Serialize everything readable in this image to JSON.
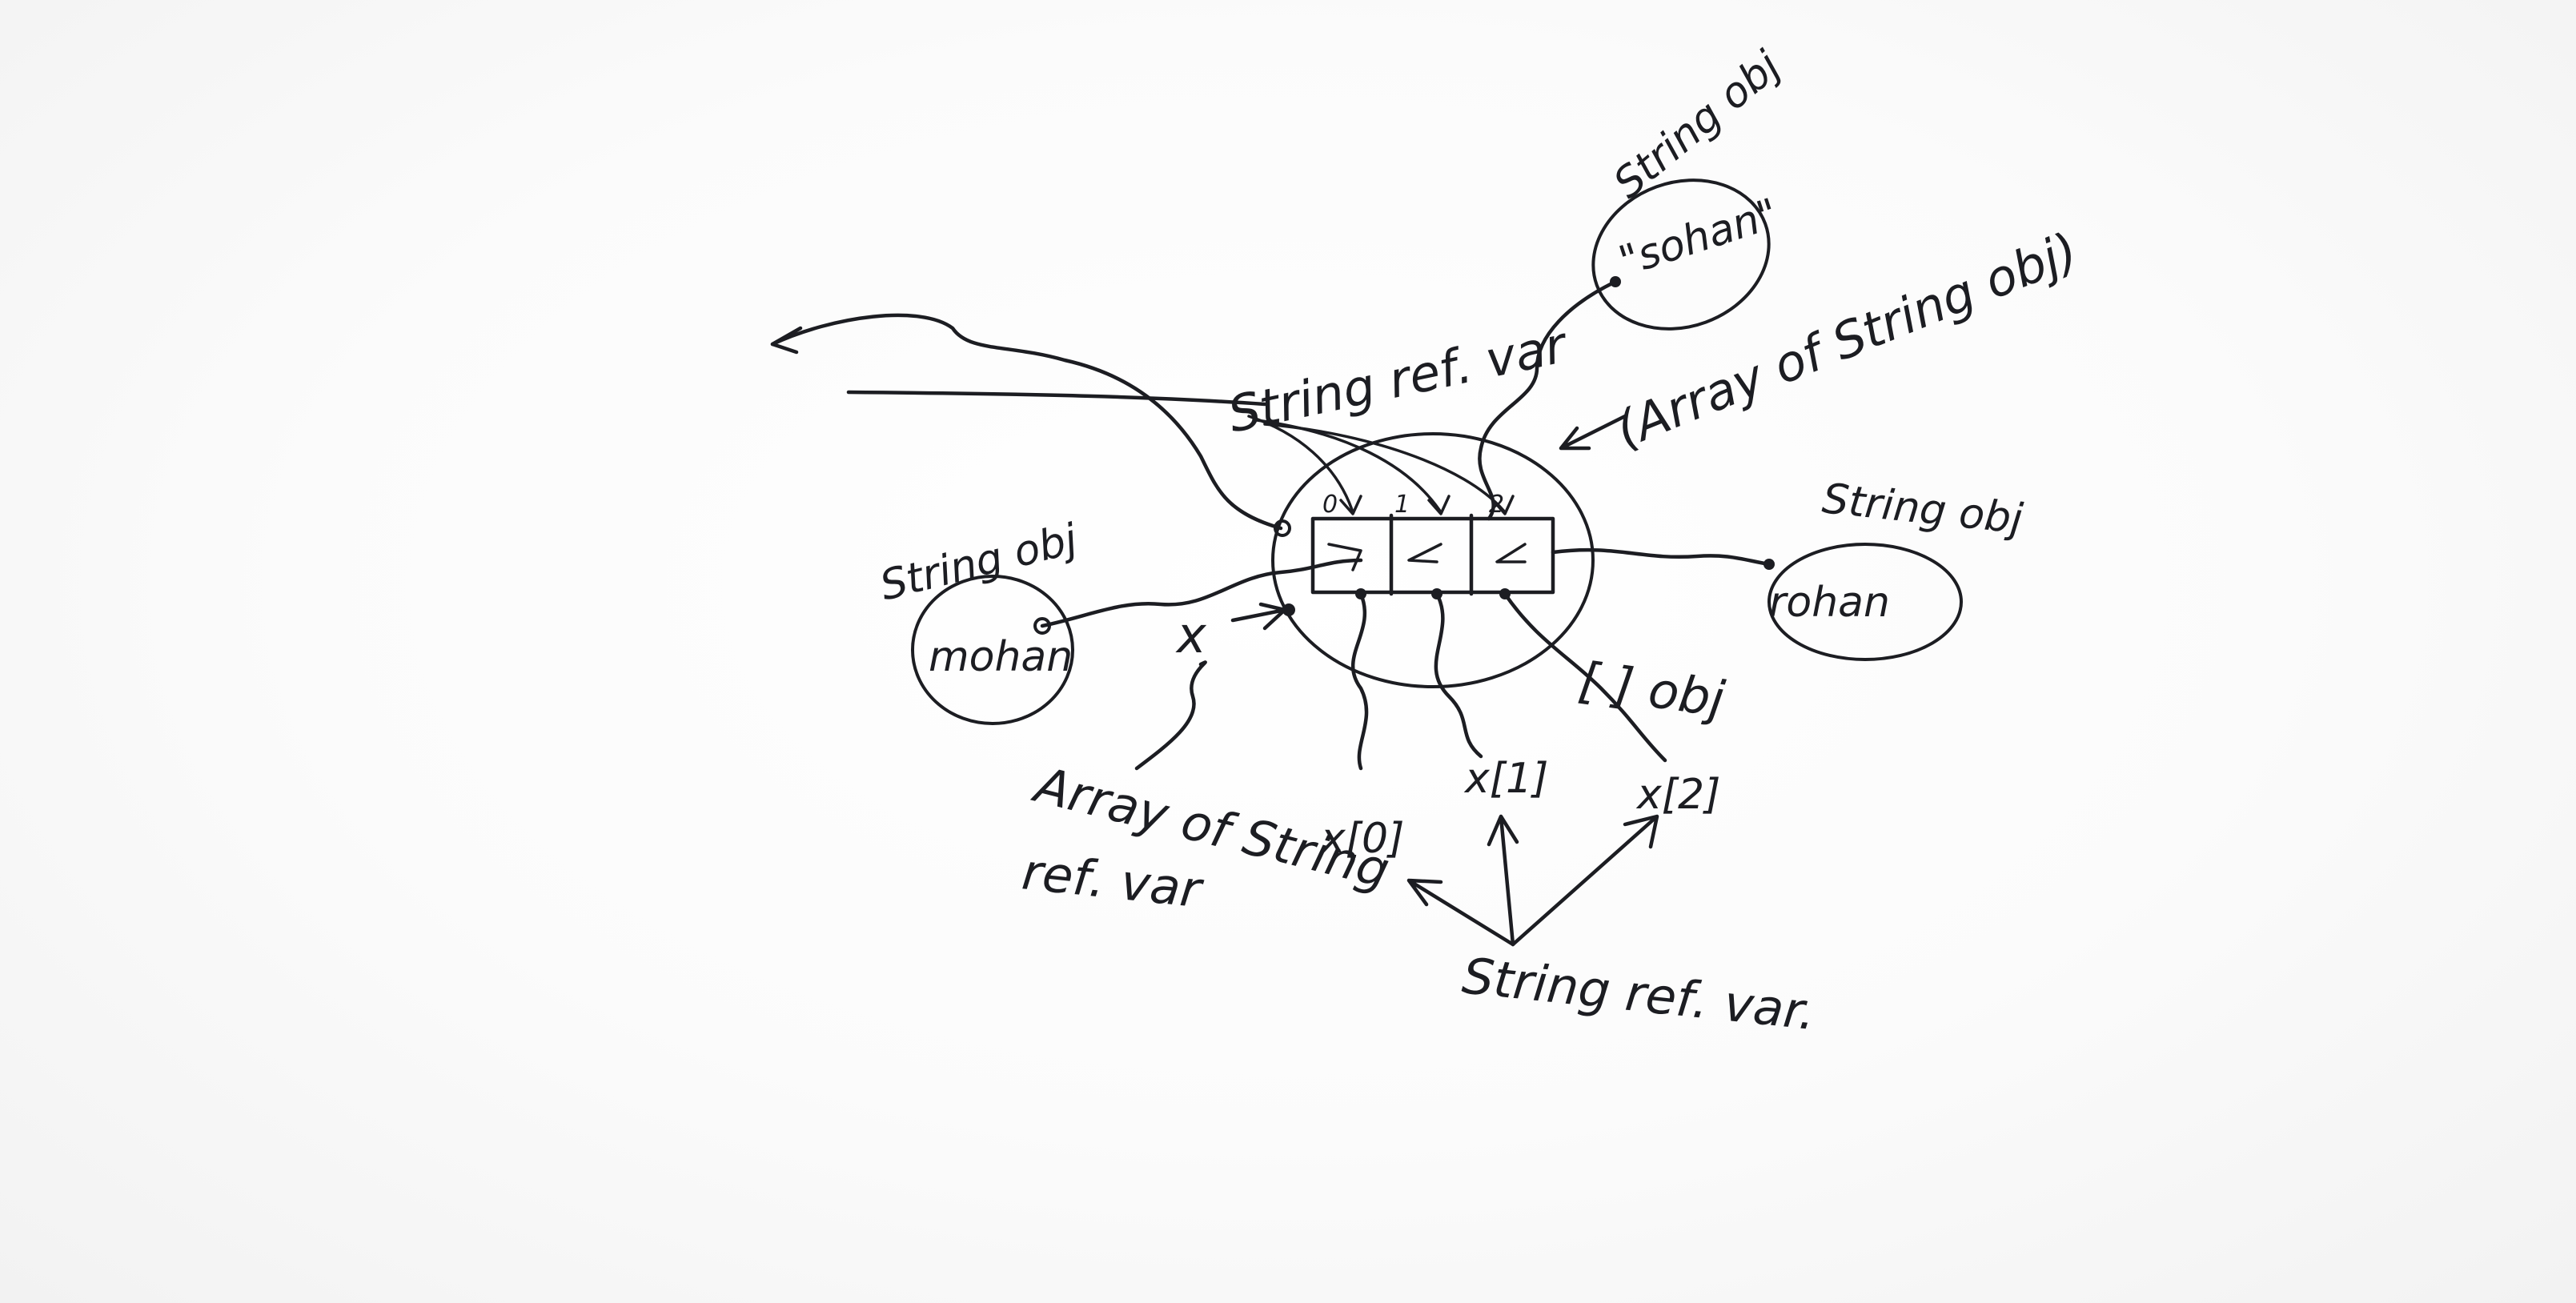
{
  "labels": {
    "string_ref_var_top": "String ref. var",
    "string_obj_top": "String obj",
    "sohan": "\"sohan\"",
    "array_of_string_obj": "(Array of String obj)",
    "string_obj_right": "String obj",
    "rohan": "rohan",
    "string_obj_left": "String obj",
    "mohan": "mohan",
    "x_var": "x",
    "array_obj": "[ ] obj",
    "x0": "x[0]",
    "x1": "x[1]",
    "x2": "x[2]",
    "array_of_string_ref_var_line1": "Array of String",
    "array_of_string_ref_var_line2": "ref. var",
    "string_ref_var_bottom": "String ref. var."
  },
  "array_cells": {
    "indices": [
      "0",
      "1",
      "2"
    ]
  }
}
